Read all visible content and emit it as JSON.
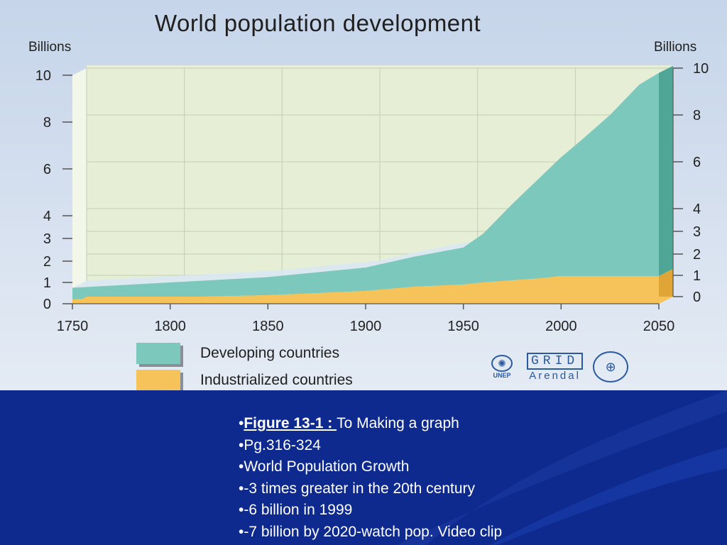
{
  "chart_data": {
    "type": "area",
    "title": "World population development",
    "ylabel_left": "Billions",
    "ylabel_right": "Billions",
    "x_ticks": [
      "1750",
      "1800",
      "1850",
      "1900",
      "1950",
      "2000",
      "2050"
    ],
    "y_ticks_left": [
      "0",
      "1",
      "2",
      "3",
      "4",
      "6",
      "8",
      "10"
    ],
    "y_ticks_right": [
      "0",
      "1",
      "2",
      "3",
      "4",
      "6",
      "8",
      "10"
    ],
    "xlim": [
      1750,
      2050
    ],
    "ylim": [
      0,
      10
    ],
    "stacked": true,
    "grid": true,
    "x": [
      1750,
      1800,
      1850,
      1900,
      1925,
      1950,
      1960,
      1975,
      1990,
      2000,
      2010,
      2025,
      2040,
      2050
    ],
    "series": [
      {
        "name": "Industrialized countries",
        "color": "#f6c25a",
        "values": [
          0.2,
          0.3,
          0.4,
          0.6,
          0.8,
          0.9,
          1.0,
          1.1,
          1.2,
          1.3,
          1.3,
          1.3,
          1.3,
          1.3
        ]
      },
      {
        "name": "Developing countries",
        "color": "#7cc8bc",
        "values": [
          0.55,
          0.7,
          0.85,
          1.1,
          1.4,
          1.7,
          2.2,
          3.4,
          4.5,
          5.2,
          5.9,
          7.0,
          8.3,
          8.8
        ]
      }
    ]
  },
  "legend": {
    "developing_label": "Developing countries",
    "industrialized_label": "Industrialized countries"
  },
  "logos": {
    "unep_text": "UNEP",
    "grid_top": "GRID",
    "grid_bottom": "Arendal"
  },
  "slide": {
    "bullets": [
      {
        "bold": "Figure 13-1 : ",
        "text": "To Making a graph"
      },
      {
        "bold": "",
        "text": "Pg.316-324"
      },
      {
        "bold": "",
        "text": "World Population Growth"
      },
      {
        "bold": "",
        "text": "-3 times greater in the 20th century"
      },
      {
        "bold": "",
        "text": "-6 billion in 1999"
      },
      {
        "bold": "",
        "text": "-7 billion by 2020-watch pop. Video clip"
      }
    ],
    "bullet_char": "•"
  },
  "colors": {
    "developing": "#7cc8bc",
    "industrialized": "#f6c25a",
    "slide_background": "#0e2a8f"
  }
}
